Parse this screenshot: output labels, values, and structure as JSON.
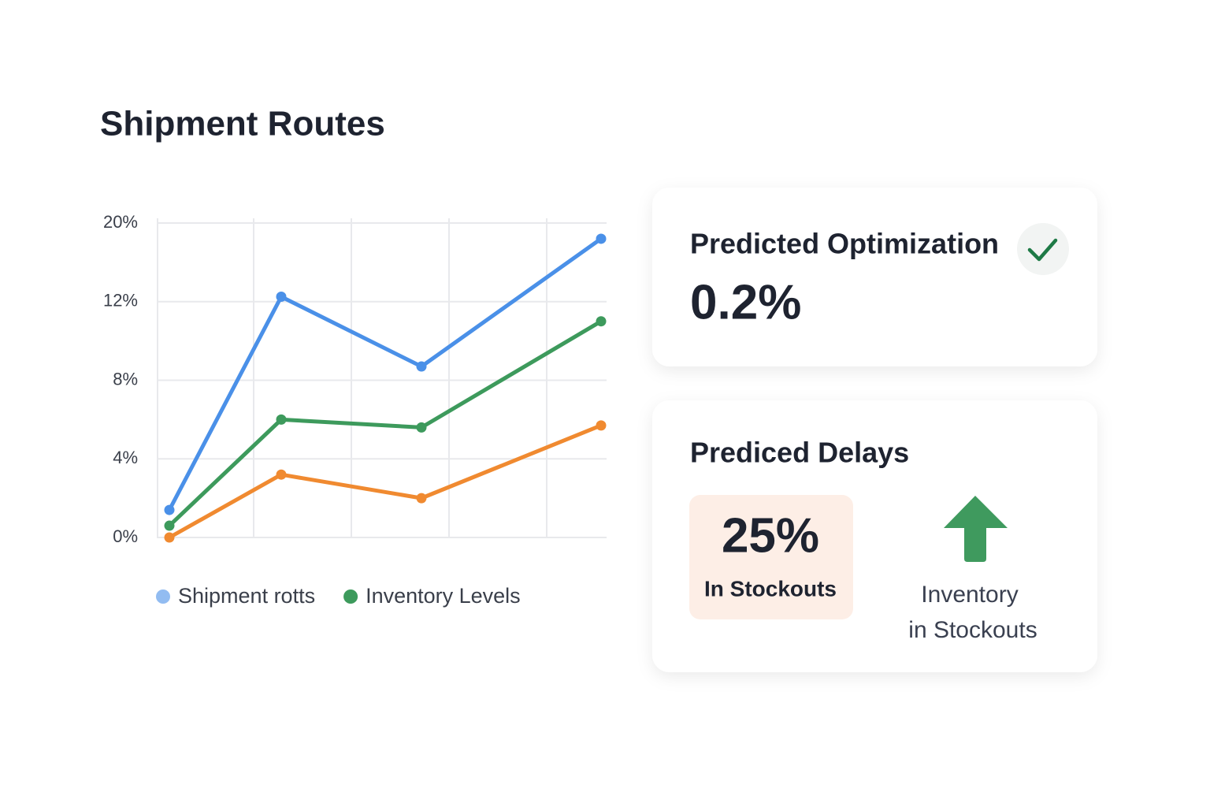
{
  "chart_data": {
    "type": "line",
    "title": "Shipment Routes",
    "categories": [
      null,
      null,
      null,
      null
    ],
    "series": [
      {
        "name": "Shipment rotts",
        "color": "#4a90e8",
        "values": [
          1.4,
          12.5,
          8.7,
          18.4
        ]
      },
      {
        "name": "Inventory Levels",
        "color": "#3d9a5c",
        "values": [
          0.6,
          6.0,
          5.6,
          11.0
        ]
      },
      {
        "color": "#f08a30",
        "values": [
          0,
          3.2,
          2.0,
          5.7
        ]
      }
    ],
    "ylim": [
      0,
      20
    ],
    "yticks": [
      {
        "value": 0,
        "label": "0%"
      },
      {
        "value": 4,
        "label": "4%"
      },
      {
        "value": 8,
        "label": "8%"
      },
      {
        "value": 12,
        "label": "12%"
      },
      {
        "value": 20,
        "label": "20%"
      }
    ],
    "grid": true
  },
  "cards": [
    {
      "title": "Predicted Optimization",
      "value": "0.2%"
    },
    {
      "title": "Prediced Delays",
      "badge": {
        "value": "25%",
        "label": "In Stockouts"
      },
      "indicator": [
        "Inventory",
        "in Stockouts"
      ]
    }
  ]
}
